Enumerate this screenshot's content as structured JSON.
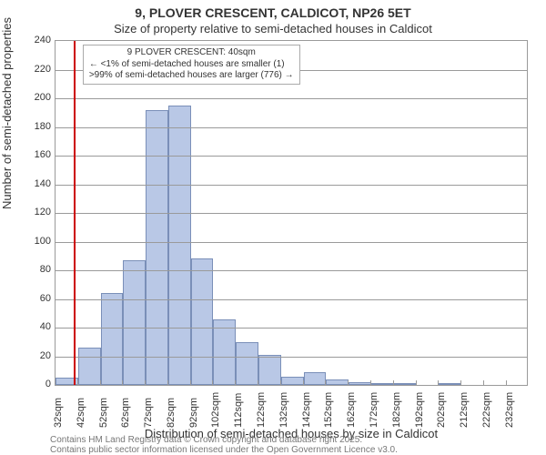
{
  "title": "9, PLOVER CRESCENT, CALDICOT, NP26 5ET",
  "subtitle": "Size of property relative to semi-detached houses in Caldicot",
  "ylabel": "Number of semi-detached properties",
  "xlabel": "Distribution of semi-detached houses by size in Caldicot",
  "footnote1": "Contains HM Land Registry data © Crown copyright and database right 2025.",
  "footnote2": "Contains public sector information licensed under the Open Government Licence v3.0.",
  "annotation": {
    "line1": "9 PLOVER CRESCENT: 40sqm",
    "line2": "← <1% of semi-detached houses are smaller (1)",
    "line3": ">99% of semi-detached houses are larger (776) →",
    "box_bg": "#ffffff",
    "box_border": "#aaaaaa",
    "fontsize": 10
  },
  "chart": {
    "type": "histogram",
    "ylim": [
      0,
      240
    ],
    "ytick_step": 20,
    "yticks": [
      0,
      20,
      40,
      60,
      80,
      100,
      120,
      140,
      160,
      180,
      200,
      220,
      240
    ],
    "x_start": 32,
    "x_end": 241,
    "x_bin_width": 10,
    "x_tick_start": 32,
    "x_tick_step": 10,
    "x_tick_count": 21,
    "x_tick_suffix": "sqm",
    "values": [
      5,
      26,
      64,
      87,
      192,
      195,
      88,
      46,
      30,
      21,
      6,
      9,
      4,
      2,
      1,
      1,
      0,
      1,
      0,
      0,
      0
    ],
    "bar_fill": "#b9c8e6",
    "bar_border": "#7a8fb8",
    "grid_color": "#9a9a9a",
    "background_color": "#ffffff",
    "marker_x": 40,
    "marker_color": "#cc0000",
    "marker_width": 2,
    "title_fontsize": 14,
    "subtitle_fontsize": 13,
    "axis_label_fontsize": 13,
    "tick_fontsize": 11
  }
}
